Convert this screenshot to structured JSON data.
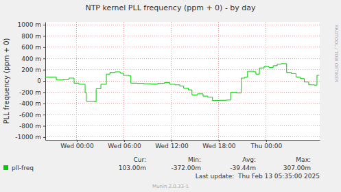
{
  "chart_data": {
    "type": "line",
    "title": "NTP kernel PLL frequency (ppm + 0) - by day",
    "y_label": "PLL frequency (ppm + 0)",
    "x": [
      -4.0,
      -2.8,
      -2.6,
      -1.7,
      -1.0,
      -0.35,
      0.25,
      1.05,
      1.2,
      2.25,
      2.45,
      3.05,
      3.75,
      4.2,
      4.85,
      5.5,
      5.9,
      6.6,
      6.85,
      7.65,
      8.5,
      9.4,
      10.25,
      11.1,
      11.8,
      12.45,
      13.05,
      13.55,
      14.15,
      14.6,
      15.3,
      16.0,
      16.6,
      17.2,
      18.1,
      18.95,
      19.5,
      20.25,
      20.85,
      21.3,
      21.65,
      22.45,
      22.7,
      23.15,
      23.75,
      24.35,
      24.9,
      25.4,
      25.9,
      26.6,
      27.2,
      27.8,
      28.35,
      28.85,
      29.4,
      30.1,
      30.45,
      30.75
    ],
    "series": [
      {
        "name": "pll-freq",
        "color": "#00cc00",
        "values": [
          0.07,
          0.07,
          0.02,
          0.03,
          0.05,
          -0.04,
          -0.06,
          -0.21,
          -0.36,
          -0.372,
          -0.14,
          -0.06,
          0.12,
          0.15,
          0.16,
          0.14,
          0.1,
          0.09,
          -0.04,
          -0.045,
          -0.05,
          -0.055,
          -0.045,
          -0.03,
          -0.06,
          -0.07,
          -0.09,
          -0.13,
          -0.16,
          -0.25,
          -0.23,
          -0.27,
          -0.29,
          -0.35,
          -0.345,
          -0.34,
          -0.2,
          -0.215,
          0.05,
          0.07,
          0.17,
          0.16,
          0.12,
          0.23,
          0.26,
          0.24,
          0.27,
          0.3,
          0.307,
          0.15,
          0.13,
          0.07,
          0.04,
          -0.02,
          -0.07,
          -0.075,
          0.103,
          0.103
        ]
      }
    ],
    "xlim": [
      -4,
      30.8
    ],
    "xticks": [
      {
        "value": 0,
        "label": "Wed 00:00"
      },
      {
        "value": 6,
        "label": "Wed 06:00"
      },
      {
        "value": 12,
        "label": "Wed 12:00"
      },
      {
        "value": 18,
        "label": "Wed 18:00"
      },
      {
        "value": 24,
        "label": "Thu 00:00"
      }
    ],
    "ylim": [
      -1.05,
      1.05
    ],
    "yticks": [
      {
        "value": 1,
        "label": "1000 m"
      },
      {
        "value": 0.8,
        "label": "800 m"
      },
      {
        "value": 0.6,
        "label": "600 m"
      },
      {
        "value": 0.4,
        "label": "400 m"
      },
      {
        "value": 0.2,
        "label": "200 m"
      },
      0,
      {
        "value": -0.2,
        "label": "-200 m"
      },
      {
        "value": -0.4,
        "label": "-400 m"
      },
      {
        "value": -0.6,
        "label": "-600 m"
      },
      {
        "value": -0.8,
        "label": "-800 m"
      },
      {
        "value": -1,
        "label": "-1000 m"
      }
    ],
    "grid": true,
    "stats": [
      {
        "label": "Cur:",
        "value": "103.00m"
      },
      {
        "label": "Min:",
        "value": "-372.00m"
      },
      {
        "label": "Avg:",
        "value": "-39.44m"
      },
      {
        "label": "Max:",
        "value": "307.00m"
      }
    ],
    "last_update": "Last update:  Thu Feb 13 05:35:00 2025",
    "footer": "Munin 2.0.33-1",
    "watermark": "RRDTOOL / TOBI OETIKER"
  }
}
